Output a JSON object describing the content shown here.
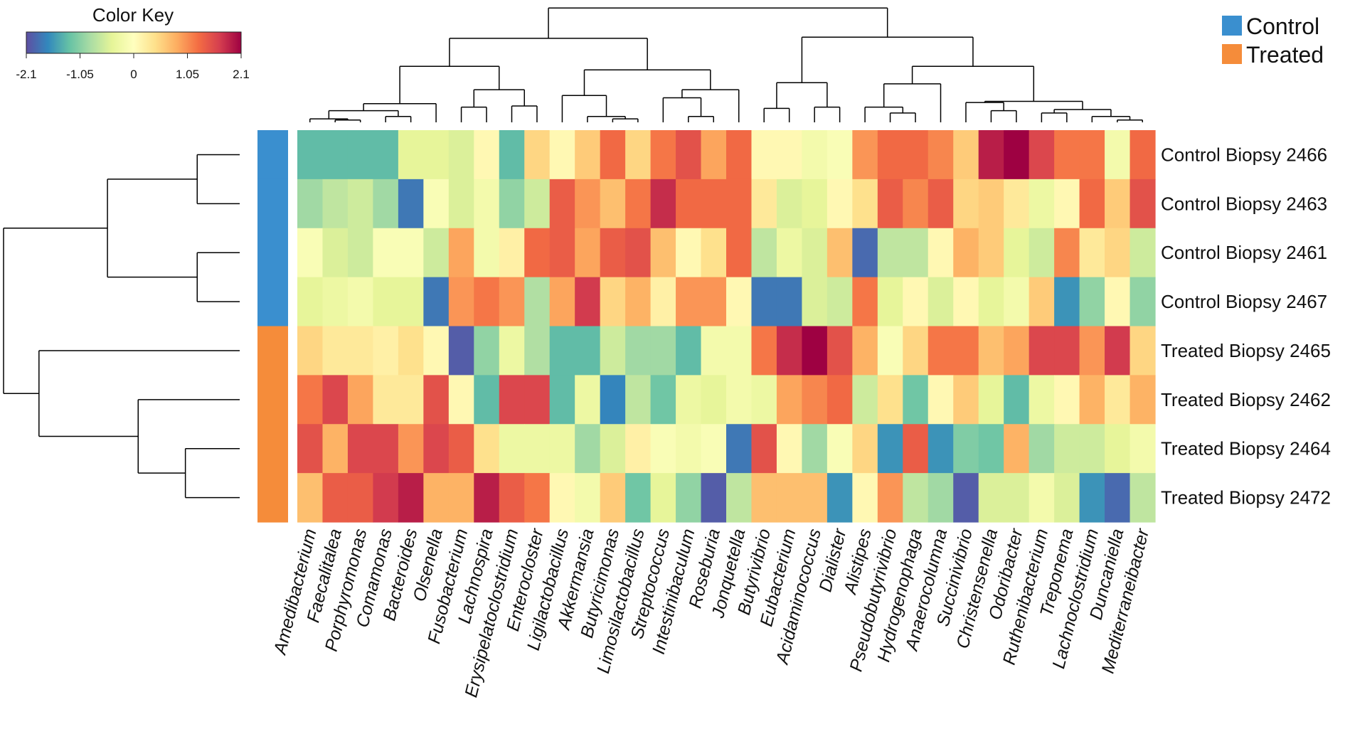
{
  "chart_data": {
    "type": "heatmap",
    "title": "",
    "color_key": {
      "title": "Color Key",
      "tick_labels": [
        "-2.1",
        "-1.05",
        "0",
        "1.05",
        "2.1"
      ],
      "range": [
        -2.1,
        2.1
      ],
      "palette": [
        "#5e4fa2",
        "#3288bd",
        "#66c2a5",
        "#abdda4",
        "#e6f598",
        "#ffffbf",
        "#fee08b",
        "#fdae61",
        "#f46d43",
        "#d53e4f",
        "#9e0142"
      ]
    },
    "groups": [
      {
        "name": "Control",
        "color": "#3a8fcf"
      },
      {
        "name": "Treated",
        "color": "#f58c3a"
      }
    ],
    "rows": [
      {
        "label": "Control Biopsy 2466",
        "group": "Control"
      },
      {
        "label": "Control Biopsy 2463",
        "group": "Control"
      },
      {
        "label": "Control Biopsy 2461",
        "group": "Control"
      },
      {
        "label": "Control Biopsy 2467",
        "group": "Control"
      },
      {
        "label": "Treated Biopsy 2465",
        "group": "Treated"
      },
      {
        "label": "Treated Biopsy 2462",
        "group": "Treated"
      },
      {
        "label": "Treated Biopsy 2464",
        "group": "Treated"
      },
      {
        "label": "Treated Biopsy 2472",
        "group": "Treated"
      }
    ],
    "columns": [
      "Amedibacterium",
      "Faecalitalea",
      "Porphyromonas",
      "Comamonas",
      "Bacteroides",
      "Olsenella",
      "Fusobacterium",
      "Lachnospira",
      "Erysipelatoclostridium",
      "Enterocloster",
      "Ligilactobacillus",
      "Akkermansia",
      "Butyricimonas",
      "Limosilactobacillus",
      "Streptococcus",
      "Intestinibaculum",
      "Roseburia",
      "Jonquetella",
      "Butyrivibrio",
      "Eubacterium",
      "Acidaminococcus",
      "Dialister",
      "Alistipes",
      "Pseudobutyrivibrio",
      "Hydrogenophaga",
      "Anaerocolumna",
      "Succinivibrio",
      "Christensenella",
      "Odoribacter",
      "Ruthenibacterium",
      "Treponema",
      "Lachnoclostridium",
      "Duncaniella",
      "Mediterraneibacter"
    ],
    "values": [
      [
        -1.3,
        -1.3,
        -1.3,
        -1.3,
        -0.4,
        -0.4,
        -0.5,
        0.1,
        -1.3,
        0.5,
        0.1,
        0.6,
        1.3,
        0.5,
        1.2,
        1.5,
        0.9,
        1.3,
        0.1,
        0.1,
        -0.2,
        -0.1,
        1.0,
        1.3,
        1.3,
        1.1,
        0.6,
        1.9,
        2.1,
        1.6,
        1.2,
        1.2,
        -0.2,
        1.3
      ],
      [
        -0.9,
        -0.7,
        -0.6,
        -0.9,
        -1.8,
        -0.1,
        -0.5,
        -0.2,
        -1.0,
        -0.6,
        1.4,
        1.0,
        0.7,
        1.2,
        1.8,
        1.3,
        1.3,
        1.3,
        0.3,
        -0.5,
        -0.4,
        0.1,
        0.4,
        1.4,
        1.1,
        1.4,
        0.5,
        0.6,
        0.3,
        -0.3,
        0.1,
        1.3,
        0.6,
        1.5
      ],
      [
        -0.1,
        -0.5,
        -0.6,
        -0.1,
        -0.1,
        -0.6,
        0.9,
        -0.2,
        0.2,
        1.3,
        1.4,
        0.9,
        1.4,
        1.5,
        0.7,
        0.1,
        0.4,
        1.3,
        -0.7,
        -0.3,
        -0.5,
        0.7,
        -1.9,
        -0.7,
        -0.7,
        0.1,
        0.8,
        0.6,
        -0.4,
        -0.6,
        1.1,
        0.3,
        0.5,
        -0.6
      ],
      [
        -0.4,
        -0.3,
        -0.2,
        -0.4,
        -0.4,
        -1.8,
        1.0,
        1.2,
        1.0,
        -0.8,
        0.9,
        1.7,
        0.5,
        0.8,
        0.2,
        1.0,
        1.0,
        0.1,
        -1.8,
        -1.8,
        -0.5,
        -0.6,
        1.2,
        -0.4,
        0.1,
        -0.5,
        0.1,
        -0.4,
        -0.2,
        0.6,
        -1.6,
        -1.0,
        0.1,
        -1.0
      ],
      [
        0.5,
        0.3,
        0.3,
        0.2,
        0.4,
        0.1,
        -2.0,
        -1.0,
        -0.3,
        -0.8,
        -1.3,
        -1.3,
        -0.6,
        -0.9,
        -0.9,
        -1.3,
        -0.2,
        -0.2,
        1.2,
        1.8,
        2.1,
        1.5,
        0.8,
        -0.1,
        0.5,
        1.2,
        1.2,
        0.7,
        0.9,
        1.6,
        1.6,
        1.0,
        1.7,
        0.5
      ],
      [
        1.2,
        1.6,
        0.9,
        0.3,
        0.3,
        1.5,
        0.1,
        -1.3,
        1.6,
        1.6,
        -1.3,
        -0.3,
        -1.7,
        -0.7,
        -1.2,
        -0.3,
        -0.4,
        -0.2,
        -0.3,
        0.9,
        1.1,
        1.3,
        -0.6,
        0.4,
        -1.2,
        0.1,
        0.6,
        -0.4,
        -1.3,
        -0.3,
        0.1,
        0.8,
        0.3,
        0.8
      ],
      [
        1.5,
        0.8,
        1.6,
        1.6,
        1.0,
        1.6,
        1.4,
        0.4,
        -0.3,
        -0.3,
        -0.3,
        -0.9,
        -0.5,
        0.2,
        -0.1,
        -0.2,
        -0.1,
        -1.8,
        1.5,
        0.1,
        -0.9,
        -0.1,
        0.5,
        -1.6,
        1.4,
        -1.6,
        -1.1,
        -1.2,
        0.8,
        -0.9,
        -0.6,
        -0.6,
        -0.4,
        -0.2
      ],
      [
        0.7,
        1.4,
        1.4,
        1.7,
        1.9,
        0.8,
        0.8,
        1.9,
        1.4,
        1.2,
        0.1,
        -0.2,
        0.6,
        -1.2,
        -0.4,
        -1.0,
        -2.0,
        -0.7,
        0.7,
        0.7,
        0.7,
        -1.6,
        0.1,
        1.0,
        -0.7,
        -0.9,
        -2.0,
        -0.5,
        -0.5,
        -0.2,
        -0.5,
        -1.6,
        -1.9,
        -0.7
      ]
    ]
  },
  "legend": {
    "items": [
      {
        "label": "Control",
        "color": "#3a8fcf"
      },
      {
        "label": "Treated",
        "color": "#f58c3a"
      }
    ]
  }
}
